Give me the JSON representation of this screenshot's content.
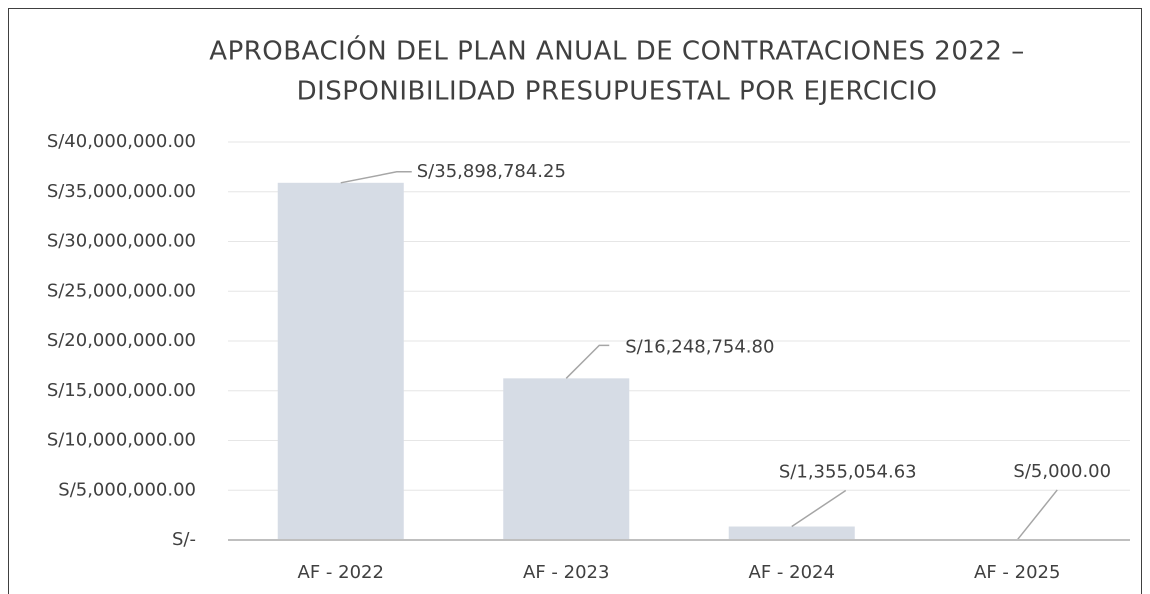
{
  "chart_data": {
    "type": "bar",
    "title": [
      "APROBACIÓN DEL PLAN ANUAL DE CONTRATACIONES 2022 –",
      "DISPONIBILIDAD PRESUPUESTAL POR EJERCICIO"
    ],
    "categories": [
      "AF - 2022",
      "AF - 2023",
      "AF - 2024",
      "AF - 2025"
    ],
    "values": [
      35898784.25,
      16248754.8,
      1355054.63,
      5000.0
    ],
    "value_labels": [
      "S/35,898,784.25",
      "S/16,248,754.80",
      "S/1,355,054.63",
      "S/5,000.00"
    ],
    "color": "#d6dce5",
    "ylim": [
      0,
      40000000
    ],
    "yticks": [
      {
        "value": 0,
        "label": "S/-"
      },
      {
        "value": 5000000,
        "label": "S/5,000,000.00"
      },
      {
        "value": 10000000,
        "label": "S/10,000,000.00"
      },
      {
        "value": 15000000,
        "label": "S/15,000,000.00"
      },
      {
        "value": 20000000,
        "label": "S/20,000,000.00"
      },
      {
        "value": 25000000,
        "label": "S/25,000,000.00"
      },
      {
        "value": 30000000,
        "label": "S/30,000,000.00"
      },
      {
        "value": 35000000,
        "label": "S/35,000,000.00"
      },
      {
        "value": 40000000,
        "label": "S/40,000,000.00"
      }
    ],
    "grid": true
  }
}
